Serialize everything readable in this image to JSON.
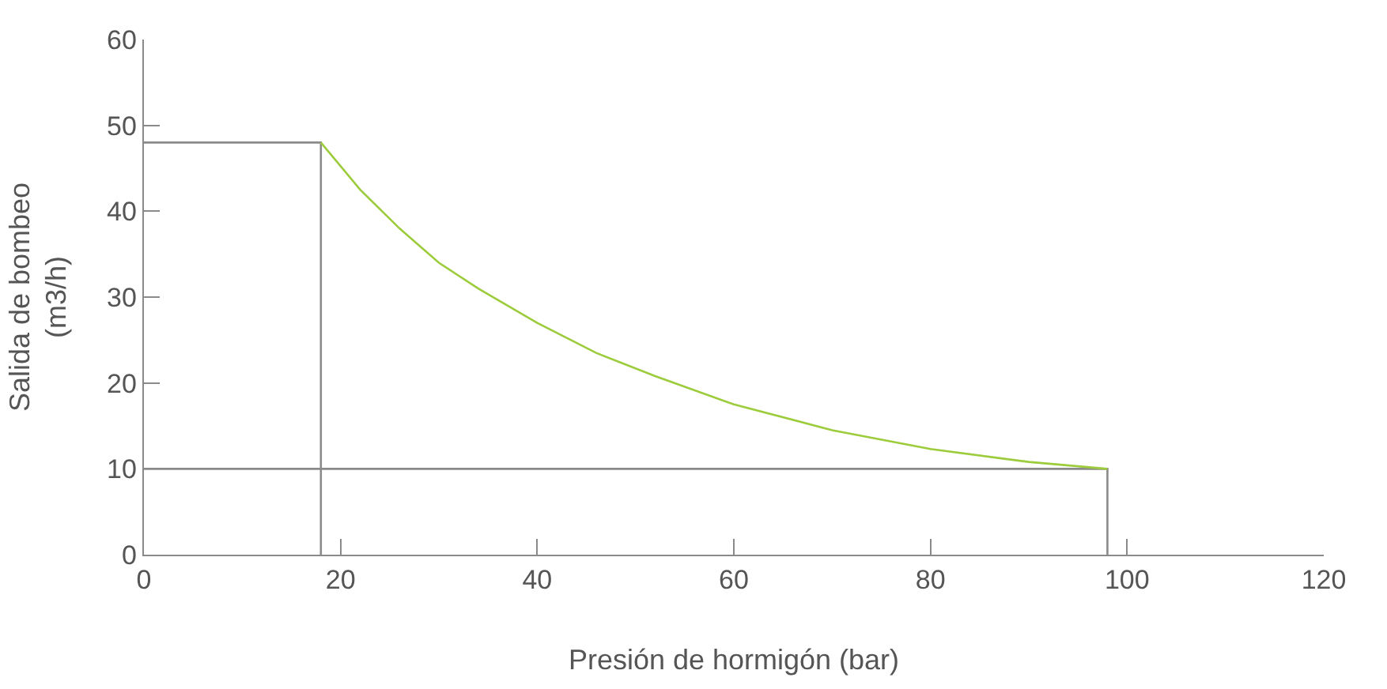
{
  "chart_data": {
    "type": "line",
    "xlabel": "Presión de hormigón (bar)",
    "ylabel": "Salida de bombeo\n(m3/h)",
    "xlim": [
      0,
      120
    ],
    "ylim": [
      0,
      60
    ],
    "xticks": [
      0,
      20,
      40,
      60,
      80,
      100,
      120
    ],
    "yticks": [
      0,
      10,
      20,
      30,
      40,
      50,
      60
    ],
    "marker": "none",
    "line_style": "solid",
    "series": [
      {
        "color": "#8a8a8a",
        "x": [
          0,
          18,
          18
        ],
        "values": [
          48,
          48,
          0
        ]
      },
      {
        "color": "#8a8a8a",
        "x": [
          0,
          98,
          98
        ],
        "values": [
          10,
          10,
          0
        ]
      },
      {
        "color": "#9ccc3c",
        "x": [
          18,
          22,
          26,
          30,
          34,
          40,
          46,
          52,
          60,
          70,
          80,
          90,
          98
        ],
        "values": [
          48,
          42.5,
          38,
          34,
          31,
          27,
          23.5,
          20.8,
          17.5,
          14.5,
          12.3,
          10.8,
          10
        ]
      }
    ]
  }
}
